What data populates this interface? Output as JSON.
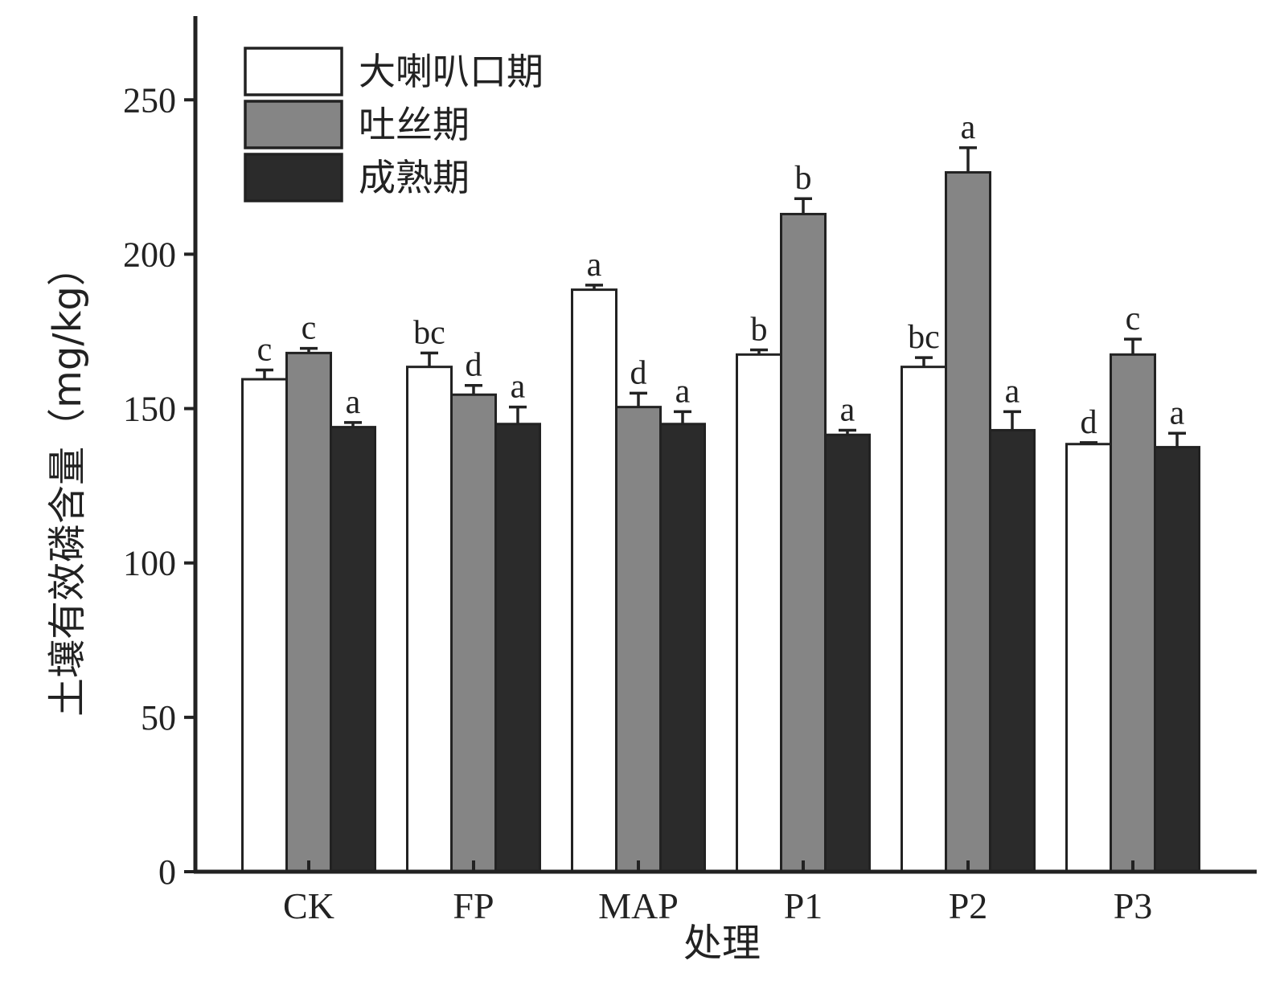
{
  "chart_data": {
    "type": "bar",
    "xlabel": "处理",
    "ylabel": "土壤有效磷含量（mg/kg）",
    "ylim": [
      0,
      275
    ],
    "yticks": [
      0,
      50,
      100,
      150,
      200,
      250
    ],
    "grid": false,
    "legend_position": "top-left",
    "categories": [
      "CK",
      "FP",
      "MAP",
      "P1",
      "P2",
      "P3"
    ],
    "series": [
      {
        "name": "大喇叭口期",
        "color": "#ffffff",
        "values": [
          159.5,
          163.5,
          188.5,
          167.5,
          163.5,
          138.5
        ],
        "errors": [
          3,
          4.5,
          1.5,
          1.5,
          3,
          0.5
        ],
        "labels": [
          "c",
          "bc",
          "a",
          "b",
          "bc",
          "d"
        ]
      },
      {
        "name": "吐丝期",
        "color": "#858585",
        "values": [
          168,
          154.5,
          150.5,
          213,
          226.5,
          167.5
        ],
        "errors": [
          1.5,
          3,
          4.5,
          5,
          8,
          5
        ],
        "labels": [
          "c",
          "d",
          "d",
          "b",
          "a",
          "c"
        ]
      },
      {
        "name": "成熟期",
        "color": "#2b2b2b",
        "values": [
          144,
          145,
          145,
          141.5,
          143,
          137.5
        ],
        "errors": [
          1.5,
          5.5,
          4,
          1.5,
          6,
          4.5
        ],
        "labels": [
          "a",
          "a",
          "a",
          "a",
          "a",
          "a"
        ]
      }
    ]
  }
}
